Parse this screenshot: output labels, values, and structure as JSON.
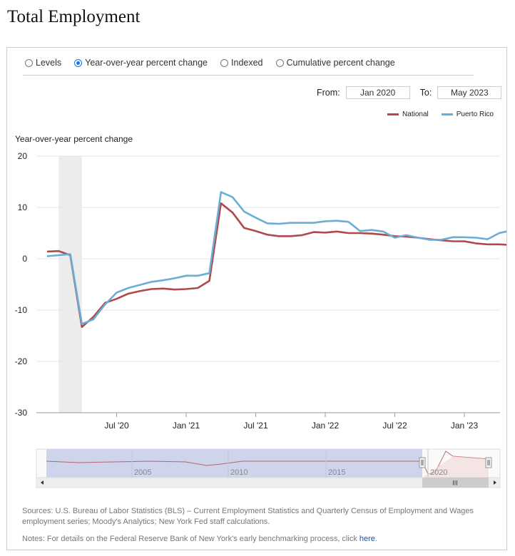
{
  "page_title": "Total Employment",
  "view_options": [
    {
      "label": "Levels",
      "selected": false
    },
    {
      "label": "Year-over-year percent change",
      "selected": true
    },
    {
      "label": "Indexed",
      "selected": false
    },
    {
      "label": "Cumulative percent change",
      "selected": false
    }
  ],
  "range": {
    "from_label": "From:",
    "from_value": "Jan 2020",
    "to_label": "To:",
    "to_value": "May 2023"
  },
  "navigator": {
    "year_labels": [
      "2005",
      "2010",
      "2015",
      "2020"
    ],
    "scroll_thumb": "III"
  },
  "sources_text": "Sources: U.S. Bureau of Labor Statistics (BLS) – Current Employment Statistics and Quarterly Census of Employment and Wages employment series; Moody's Analytics; New York Fed staff calculations.",
  "notes_text": "Notes: For details on the Federal Reserve Bank of New York's early benchmarking process, click ",
  "notes_link": "here",
  "notes_end": ".",
  "colors": {
    "national": "#b0484d",
    "puerto_rico": "#6aaed6",
    "recession_shade": "#ececec",
    "navigator_fill": "#cdd4eb"
  },
  "chart_data": {
    "type": "line",
    "ylabel": "Year-over-year percent change",
    "ylim": [
      -30,
      20
    ],
    "yticks": [
      "20",
      "10",
      "0",
      "-10",
      "-20",
      "-30"
    ],
    "xticks": [
      "Jul '20",
      "Jan '21",
      "Jul '21",
      "Jan '22",
      "Jul '22",
      "Jan '23"
    ],
    "x": [
      "2020-01",
      "2020-02",
      "2020-03",
      "2020-04",
      "2020-05",
      "2020-06",
      "2020-07",
      "2020-08",
      "2020-09",
      "2020-10",
      "2020-11",
      "2020-12",
      "2021-01",
      "2021-02",
      "2021-03",
      "2021-04",
      "2021-05",
      "2021-06",
      "2021-07",
      "2021-08",
      "2021-09",
      "2021-10",
      "2021-11",
      "2021-12",
      "2022-01",
      "2022-02",
      "2022-03",
      "2022-04",
      "2022-05",
      "2022-06",
      "2022-07",
      "2022-08",
      "2022-09",
      "2022-10",
      "2022-11",
      "2022-12",
      "2023-01",
      "2023-02",
      "2023-03",
      "2023-04",
      "2023-05"
    ],
    "recession_shading": [
      "2020-02",
      "2020-04"
    ],
    "legend": "top-right",
    "series": [
      {
        "name": "National",
        "values": [
          1.4,
          1.5,
          0.7,
          -13.3,
          -11.3,
          -8.6,
          -7.8,
          -6.8,
          -6.3,
          -5.9,
          -5.8,
          -6.0,
          -5.9,
          -5.7,
          -4.3,
          10.8,
          9.0,
          6.0,
          5.4,
          4.7,
          4.4,
          4.4,
          4.6,
          5.2,
          5.1,
          5.3,
          5.0,
          5.0,
          4.9,
          4.7,
          4.4,
          4.3,
          4.1,
          3.8,
          3.6,
          3.4,
          3.4,
          3.0,
          2.8,
          2.8,
          2.7
        ]
      },
      {
        "name": "Puerto Rico",
        "values": [
          0.5,
          0.7,
          0.9,
          -12.7,
          -11.8,
          -8.9,
          -6.6,
          -5.7,
          -5.1,
          -4.5,
          -4.2,
          -3.8,
          -3.3,
          -3.3,
          -2.8,
          13.0,
          12.0,
          9.2,
          8.0,
          6.9,
          6.8,
          7.0,
          7.0,
          7.0,
          7.3,
          7.4,
          7.2,
          5.4,
          5.6,
          5.3,
          4.1,
          4.6,
          4.1,
          3.7,
          3.7,
          4.2,
          4.2,
          4.1,
          3.8,
          5.0,
          5.5
        ]
      }
    ]
  }
}
